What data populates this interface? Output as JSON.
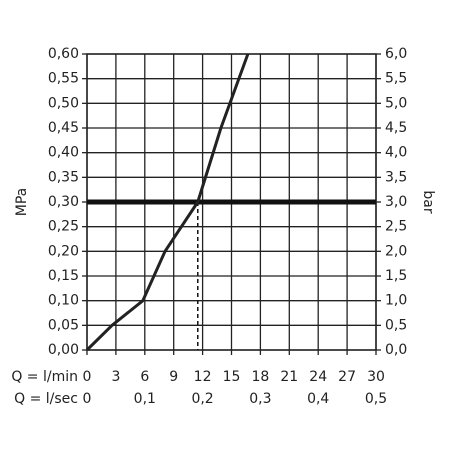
{
  "chart_data": {
    "type": "line",
    "ylabel": "MPa",
    "y2label": "bar",
    "xlabel": "Q = l/min",
    "x2label": "Q = l/sec",
    "color": "#222222",
    "grid": true,
    "x": [
      0,
      2.6,
      5.8,
      8.1,
      11.5,
      13.9,
      16.7
    ],
    "values": [
      0,
      0.05,
      0.1,
      0.2,
      0.3,
      0.45,
      0.6
    ],
    "reference_y": 0.3,
    "reference_x": 11.5,
    "xlim": [
      0,
      30
    ],
    "xticks": [
      0,
      3,
      6,
      9,
      12,
      15,
      18,
      21,
      24,
      27,
      30
    ],
    "x2lim": [
      0,
      0.5
    ],
    "x2ticks": [
      0,
      {
        "value": 0.1,
        "label": "0,1"
      },
      {
        "value": 0.2,
        "label": "0,2"
      },
      {
        "value": 0.3,
        "label": "0,3"
      },
      {
        "value": 0.4,
        "label": "0,4"
      },
      {
        "value": 0.5,
        "label": "0,5"
      }
    ],
    "ylim": [
      0,
      0.6
    ],
    "yticks": [
      {
        "value": 0,
        "label": "0,00"
      },
      {
        "value": 0.05,
        "label": "0,05"
      },
      {
        "value": 0.1,
        "label": "0,10"
      },
      {
        "value": 0.15,
        "label": "0,15"
      },
      {
        "value": 0.2,
        "label": "0,20"
      },
      {
        "value": 0.25,
        "label": "0,25"
      },
      {
        "value": 0.3,
        "label": "0,30"
      },
      {
        "value": 0.35,
        "label": "0,35"
      },
      {
        "value": 0.4,
        "label": "0,40"
      },
      {
        "value": 0.45,
        "label": "0,45"
      },
      {
        "value": 0.5,
        "label": "0,50"
      },
      {
        "value": 0.55,
        "label": "0,55"
      },
      {
        "value": 0.6,
        "label": "0,60"
      }
    ],
    "y2lim": [
      0,
      6
    ],
    "y2ticks": [
      {
        "value": 0,
        "label": "0,0"
      },
      {
        "value": 0.5,
        "label": "0,5"
      },
      {
        "value": 1,
        "label": "1,0"
      },
      {
        "value": 1.5,
        "label": "1,5"
      },
      {
        "value": 2,
        "label": "2,0"
      },
      {
        "value": 2.5,
        "label": "2,5"
      },
      {
        "value": 3,
        "label": "3,0"
      },
      {
        "value": 3.5,
        "label": "3,5"
      },
      {
        "value": 4,
        "label": "4,0"
      },
      {
        "value": 4.5,
        "label": "4,5"
      },
      {
        "value": 5,
        "label": "5,0"
      },
      {
        "value": 5.5,
        "label": "5,5"
      },
      {
        "value": 6,
        "label": "6,0"
      }
    ]
  }
}
